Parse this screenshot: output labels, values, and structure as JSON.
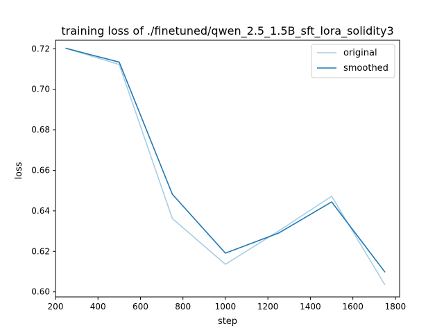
{
  "chart_data": {
    "type": "line",
    "title": "training loss of ./finetuned/qwen_2.5_1.5B_sft_lora_solidity3",
    "xlabel": "step",
    "ylabel": "loss",
    "xlim": [
      200,
      1820
    ],
    "ylim": [
      0.5975,
      0.7242
    ],
    "x_ticks": [
      200,
      400,
      600,
      800,
      1000,
      1200,
      1400,
      1600,
      1800
    ],
    "x_tick_labels": [
      "200",
      "400",
      "600",
      "800",
      "1000",
      "1200",
      "1400",
      "1600",
      "1800"
    ],
    "y_ticks": [
      0.6,
      0.62,
      0.64,
      0.66,
      0.68,
      0.7,
      0.72
    ],
    "y_tick_labels": [
      "0.60",
      "0.62",
      "0.64",
      "0.66",
      "0.68",
      "0.70",
      "0.72"
    ],
    "grid": false,
    "legend_position": "top-right",
    "series": [
      {
        "name": "original",
        "color": "#a6cee3",
        "x": [
          250,
          500,
          750,
          1000,
          1250,
          1500,
          1750
        ],
        "y": [
          0.7202,
          0.7122,
          0.6362,
          0.6136,
          0.63,
          0.6472,
          0.6036
        ]
      },
      {
        "name": "smoothed",
        "color": "#1f78b4",
        "x": [
          250,
          500,
          750,
          1000,
          1250,
          1500,
          1750
        ],
        "y": [
          0.7202,
          0.7134,
          0.6482,
          0.6191,
          0.629,
          0.6444,
          0.6099
        ]
      }
    ]
  }
}
